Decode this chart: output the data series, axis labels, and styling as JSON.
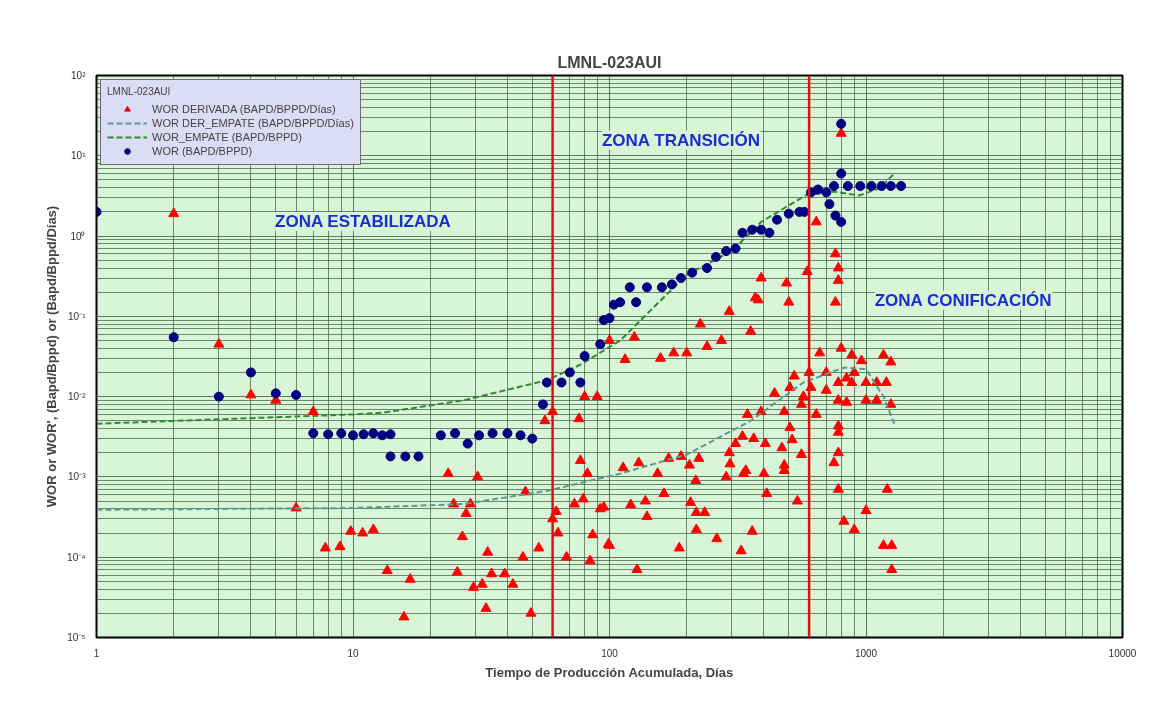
{
  "chart_data": {
    "type": "scatter",
    "title": "LMNL-023AUI",
    "xlabel": "Tiempo de Producción Acumulada, Días",
    "ylabel": "WOR or WOR', (Bapd/Bppd) or (Bapd/Bppd/Días)",
    "legend_title": "LMNL-023AUI",
    "legend": "top left",
    "grid": true,
    "log": "xy",
    "xlim": [
      1,
      10000
    ],
    "ylim": [
      1e-05,
      100
    ],
    "xticks": [
      1,
      10,
      100,
      1000,
      10000
    ],
    "yticks": [
      {
        "value": 1e-05,
        "label": "10⁻⁵"
      },
      {
        "value": 0.0001,
        "label": "10⁻⁴"
      },
      {
        "value": 0.001,
        "label": "10⁻³"
      },
      {
        "value": 0.01,
        "label": "10⁻²"
      },
      {
        "value": 0.1,
        "label": "10⁻¹"
      },
      {
        "value": 1,
        "label": "10⁰"
      },
      {
        "value": 10,
        "label": "10¹"
      },
      {
        "value": 100,
        "label": "10²"
      }
    ],
    "ref_lines": [
      {
        "axis": "x",
        "value": 60,
        "color": "#e01010"
      },
      {
        "axis": "x",
        "value": 600,
        "color": "#e01010"
      }
    ],
    "annotations": [
      "ZONA ESTABILIZADA",
      "ZONA TRANSICIÓN",
      "ZONA CONIFICACIÓN"
    ],
    "series": [
      {
        "name": "WOR DERIVADA (BAPD/BPPD/Días)",
        "marker": "triangle",
        "color": "#ff0000",
        "x": [
          2,
          3,
          4,
          5,
          7,
          6,
          7.8,
          8.9,
          9.8,
          10.9,
          12,
          13.6,
          16.7,
          15.8,
          23.5,
          30.6,
          24.7,
          28.7,
          27.6,
          26.7,
          33.5,
          25.5,
          29.5,
          31.9,
          34.7,
          39,
          42,
          33,
          49.4,
          46,
          53,
          47,
          60,
          63,
          62,
          68,
          56,
          60,
          76,
          80,
          89.5,
          77,
          82,
          73,
          79,
          92,
          84,
          99,
          86,
          115,
          100,
          125,
          158,
          178,
          200,
          226,
          240,
          273,
          293,
          355,
          380,
          113,
          130,
          154,
          170,
          190,
          205,
          223,
          217,
          293,
          310,
          295,
          285,
          333,
          95,
          121,
          138,
          163,
          140,
          207,
          218,
          235,
          218,
          262,
          326,
          360,
          187,
          128,
          100,
          800,
          760,
          780,
          780,
          640,
          590,
          390,
          490,
          370,
          500,
          760,
          660,
          800,
          880,
          1170,
          1250,
          960,
          525,
          440,
          505,
          610,
          570,
          640,
          780,
          840,
          1000,
          840,
          1000,
          1250,
          780,
          345,
          390,
          480,
          330,
          365,
          405,
          505,
          515,
          470,
          560,
          780,
          780,
          780,
          750,
          340,
          400,
          480,
          480,
          410,
          540,
          780,
          1210,
          1000,
          820,
          900,
          1170,
          1260,
          1260,
          700,
          600,
          900,
          1100,
          1200,
          560,
          700,
          1100,
          880
        ],
        "values": [
          1.9,
          0.045,
          0.0105,
          0.009,
          0.0065,
          0.00041,
          0.00013,
          0.000135,
          0.00021,
          0.0002,
          0.00022,
          6.8e-05,
          5.3e-05,
          1.8e-05,
          0.0011,
          0.001,
          0.00046,
          0.00046,
          0.00035,
          0.00018,
          0.000115,
          6.5e-05,
          4.2e-05,
          4.6e-05,
          6.2e-05,
          6.2e-05,
          4.6e-05,
          2.3e-05,
          2e-05,
          0.0001,
          0.00013,
          0.00065,
          0.0003,
          0.0002,
          0.00037,
          0.0001,
          0.005,
          0.0065,
          0.0053,
          0.01,
          0.01,
          0.0016,
          0.0011,
          0.00046,
          0.00053,
          0.0004,
          9e-05,
          0.000145,
          0.00019,
          0.029,
          0.05,
          0.055,
          0.03,
          0.035,
          0.035,
          0.08,
          0.042,
          0.05,
          0.115,
          0.065,
          0.16,
          0.0013,
          0.0015,
          0.0011,
          0.0017,
          0.0018,
          0.0014,
          0.0017,
          0.0009,
          0.002,
          0.0026,
          0.00145,
          0.001,
          0.0011,
          0.00042,
          0.00045,
          0.0005,
          0.00062,
          0.00032,
          0.00048,
          0.00036,
          0.00036,
          0.00022,
          0.00017,
          0.00012,
          0.00021,
          0.00013,
          7e-05,
          0.00014,
          19,
          0.6,
          0.4,
          0.28,
          1.5,
          0.36,
          0.3,
          0.26,
          0.17,
          0.15,
          0.15,
          0.035,
          0.04,
          0.033,
          0.033,
          0.027,
          0.028,
          0.018,
          0.011,
          0.013,
          0.013,
          0.01,
          0.006,
          0.015,
          0.017,
          0.015,
          0.0085,
          0.009,
          0.008,
          0.009,
          0.006,
          0.0065,
          0.0065,
          0.0032,
          0.003,
          0.0026,
          0.0041,
          0.0029,
          0.0023,
          0.0019,
          0.0043,
          0.0036,
          0.002,
          0.0015,
          0.0012,
          0.0011,
          0.0012,
          0.0014,
          0.00062,
          0.0005,
          0.0007,
          0.0007,
          0.00038,
          0.00028,
          0.00022,
          0.00014,
          0.00014,
          7e-05,
          0.02,
          0.02,
          0.02,
          0.015,
          0.015,
          0.008,
          0.012,
          0.009,
          0.015
        ]
      },
      {
        "name": "WOR DER_EMPATE (BAPD/BPPD/Días)",
        "type": "line",
        "line_style": "dashed",
        "color": "#5a9a94",
        "x": [
          1,
          10,
          27,
          57,
          110,
          200,
          355,
          570,
          820,
          1000,
          1170,
          1290
        ],
        "values": [
          0.00039,
          0.00041,
          0.00046,
          0.00067,
          0.0011,
          0.0019,
          0.005,
          0.015,
          0.023,
          0.022,
          0.01,
          0.0046
        ]
      },
      {
        "name": "WOR_EMPATE (BAPD/BPPD)",
        "type": "line",
        "line_style": "dashed",
        "color": "#2e8b2e",
        "x": [
          1,
          10,
          13,
          27,
          57,
          77,
          110,
          200,
          300,
          390,
          580,
          745,
          940,
          1120,
          1290
        ],
        "values": [
          0.0046,
          0.006,
          0.0063,
          0.009,
          0.016,
          0.025,
          0.05,
          0.33,
          0.65,
          1.5,
          3.2,
          3.6,
          3.2,
          3.9,
          6
        ]
      },
      {
        "name": "WOR (BAPD/BPPD)",
        "marker": "circle",
        "color": "#000080",
        "x": [
          1,
          2,
          3,
          4,
          5,
          6,
          7,
          8,
          9,
          10,
          11,
          12,
          13,
          14,
          14,
          16,
          18,
          22,
          25,
          28,
          31,
          35,
          40,
          45,
          50,
          55,
          57,
          65,
          70,
          77,
          80,
          92,
          100,
          104,
          95,
          110,
          127,
          120,
          140,
          160,
          175,
          190,
          210,
          240,
          260,
          285,
          310,
          330,
          360,
          390,
          420,
          450,
          500,
          550,
          575,
          610,
          650,
          700,
          720,
          760,
          800,
          800,
          800,
          750,
          850,
          950,
          1050,
          1150,
          1250,
          1370
        ],
        "values": [
          2,
          0.055,
          0.01,
          0.02,
          0.011,
          0.0105,
          0.0035,
          0.0034,
          0.0035,
          0.0033,
          0.0034,
          0.0035,
          0.0033,
          0.0034,
          0.0018,
          0.0018,
          0.0018,
          0.0033,
          0.0035,
          0.0026,
          0.0033,
          0.0035,
          0.0035,
          0.0033,
          0.003,
          0.008,
          0.015,
          0.015,
          0.02,
          0.015,
          0.032,
          0.045,
          0.095,
          0.14,
          0.09,
          0.15,
          0.15,
          0.23,
          0.23,
          0.23,
          0.25,
          0.3,
          0.35,
          0.4,
          0.55,
          0.65,
          0.7,
          1.1,
          1.2,
          1.2,
          1.1,
          1.6,
          1.9,
          2,
          2,
          3.5,
          3.8,
          3.5,
          2.5,
          1.8,
          1.5,
          25,
          6,
          4.2,
          4.2,
          4.2,
          4.2,
          4.2,
          4.2,
          4.2
        ]
      }
    ]
  }
}
